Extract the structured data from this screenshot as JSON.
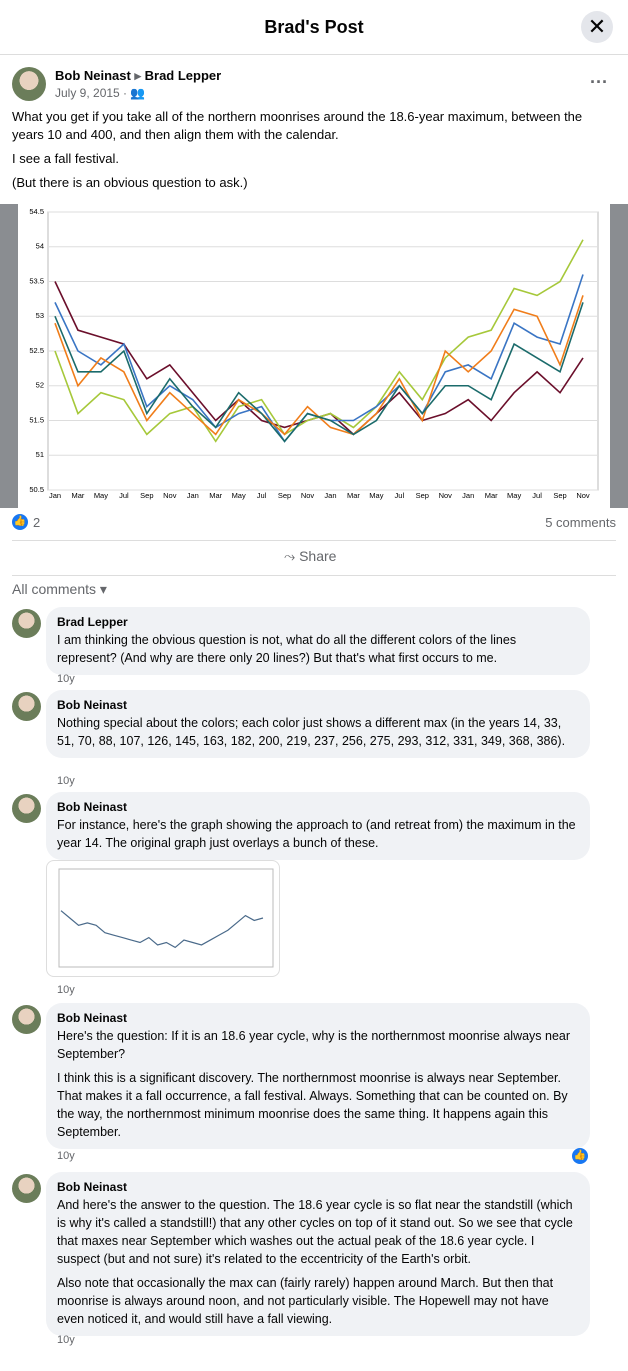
{
  "header": {
    "title": "Brad's Post"
  },
  "post": {
    "author": "Bob Neinast",
    "target": "Brad Lepper",
    "date": "July 9, 2015",
    "paragraphs": [
      "What you get if you take all of the northern moonrises around the 18.6-year maximum, between the years 10 and 400, and then align them with the calendar.",
      "I see a fall festival.",
      "(But there is an obvious question to ask.)"
    ]
  },
  "chart_data": [
    {
      "type": "line",
      "categories": [
        "Jan",
        "Mar",
        "May",
        "Jul",
        "Sep",
        "Nov",
        "Jan",
        "Mar",
        "May",
        "Jul",
        "Sep",
        "Nov",
        "Jan",
        "Mar",
        "May",
        "Jul",
        "Sep",
        "Nov",
        "Jan",
        "Mar",
        "May",
        "Jul",
        "Sep",
        "Nov"
      ],
      "ylim": [
        50.5,
        54.5
      ],
      "yticks": [
        54.5,
        54,
        53.5,
        53,
        52.5,
        52,
        51.5,
        51,
        50.5
      ],
      "grid": true,
      "series": [
        {
          "color": "#6b0f2b",
          "values": [
            53.5,
            52.8,
            52.7,
            52.6,
            52.1,
            52.3,
            51.9,
            51.5,
            51.8,
            51.5,
            51.4,
            51.5,
            51.6,
            51.3,
            51.6,
            51.9,
            51.5,
            51.6,
            51.8,
            51.5,
            51.9,
            52.2,
            51.9,
            52.4
          ]
        },
        {
          "color": "#a6c83a",
          "values": [
            52.5,
            51.6,
            51.9,
            51.8,
            51.3,
            51.6,
            51.7,
            51.2,
            51.7,
            51.8,
            51.3,
            51.5,
            51.6,
            51.4,
            51.7,
            52.2,
            51.8,
            52.4,
            52.7,
            52.8,
            53.4,
            53.3,
            53.5,
            54.1
          ]
        },
        {
          "color": "#3a75c4",
          "values": [
            53.2,
            52.5,
            52.3,
            52.6,
            51.7,
            52.0,
            51.8,
            51.4,
            51.6,
            51.7,
            51.2,
            51.6,
            51.5,
            51.5,
            51.7,
            52.0,
            51.6,
            52.2,
            52.3,
            52.1,
            52.9,
            52.7,
            52.6,
            53.6
          ]
        },
        {
          "color": "#f07d1a",
          "values": [
            52.9,
            52.0,
            52.4,
            52.2,
            51.5,
            51.9,
            51.6,
            51.3,
            51.8,
            51.6,
            51.3,
            51.7,
            51.4,
            51.3,
            51.6,
            52.1,
            51.5,
            52.5,
            52.2,
            52.5,
            53.1,
            53.0,
            52.3,
            53.3
          ]
        },
        {
          "color": "#1b6b6b",
          "values": [
            53.0,
            52.2,
            52.2,
            52.5,
            51.6,
            52.1,
            51.7,
            51.4,
            51.9,
            51.6,
            51.2,
            51.6,
            51.5,
            51.3,
            51.5,
            52.0,
            51.6,
            52.0,
            52.0,
            51.8,
            52.6,
            52.4,
            52.2,
            53.2
          ]
        }
      ]
    },
    {
      "type": "line",
      "ylim": [
        50.5,
        54.5
      ],
      "grid": true,
      "series": [
        {
          "color": "#4a6a8a",
          "values": [
            52.8,
            52.5,
            52.2,
            52.3,
            52.2,
            51.9,
            51.8,
            51.7,
            51.6,
            51.5,
            51.7,
            51.4,
            51.5,
            51.3,
            51.6,
            51.5,
            51.4,
            51.6,
            51.8,
            52.0,
            52.3,
            52.6,
            52.4,
            52.5
          ]
        }
      ]
    }
  ],
  "reactions": {
    "count": 2,
    "comments": "5 comments"
  },
  "share": "Share",
  "filter": "All comments",
  "comments": [
    {
      "author": "Brad Lepper",
      "paragraphs": [
        "I am thinking the obvious question is not, what do all the different colors of the lines represent? (And why are there only 20 lines?) But that's what first occurs to me."
      ],
      "time": "10y"
    },
    {
      "author": "Bob Neinast",
      "paragraphs": [
        "Nothing special about the colors; each color just shows a different max (in the years 14, 33, 51, 70, 88, 107, 126, 145, 163, 182, 200, 219, 237, 256, 275, 293, 312, 331, 349, 368, 386)."
      ],
      "time": "10y"
    },
    {
      "author": "Bob Neinast",
      "paragraphs": [
        "For instance, here's the graph showing the approach to (and retreat from) the maximum in the year 14. The original graph just overlays a bunch of these."
      ],
      "time": "10y"
    },
    {
      "author": "Bob Neinast",
      "paragraphs": [
        "Here's the question: If it is an 18.6 year cycle, why is the northernmost moonrise always near September?",
        "I think this is a significant discovery. The northernmost moonrise is always near September. That makes it a fall occurrence, a fall festival. Always. Something that can be counted on. By the way, the northernmost minimum moonrise does the same thing. It happens again this September."
      ],
      "time": "10y"
    },
    {
      "author": "Bob Neinast",
      "paragraphs": [
        "And here's the answer to the question. The 18.6 year cycle is so flat near the standstill (which is why it's called a standstill!) that any other cycles on top of it stand out. So we see that cycle that maxes near September which washes out the actual peak of the 18.6 year cycle. I suspect (but and not sure) it's related to the eccentricity of the Earth's orbit.",
        "Also note that occasionally the max can (fairly rarely) happen around March. But then that moonrise is always around noon, and not particularly visible. The Hopewell may not have even noticed it, and would still have a fall viewing."
      ],
      "time": "10y"
    }
  ]
}
